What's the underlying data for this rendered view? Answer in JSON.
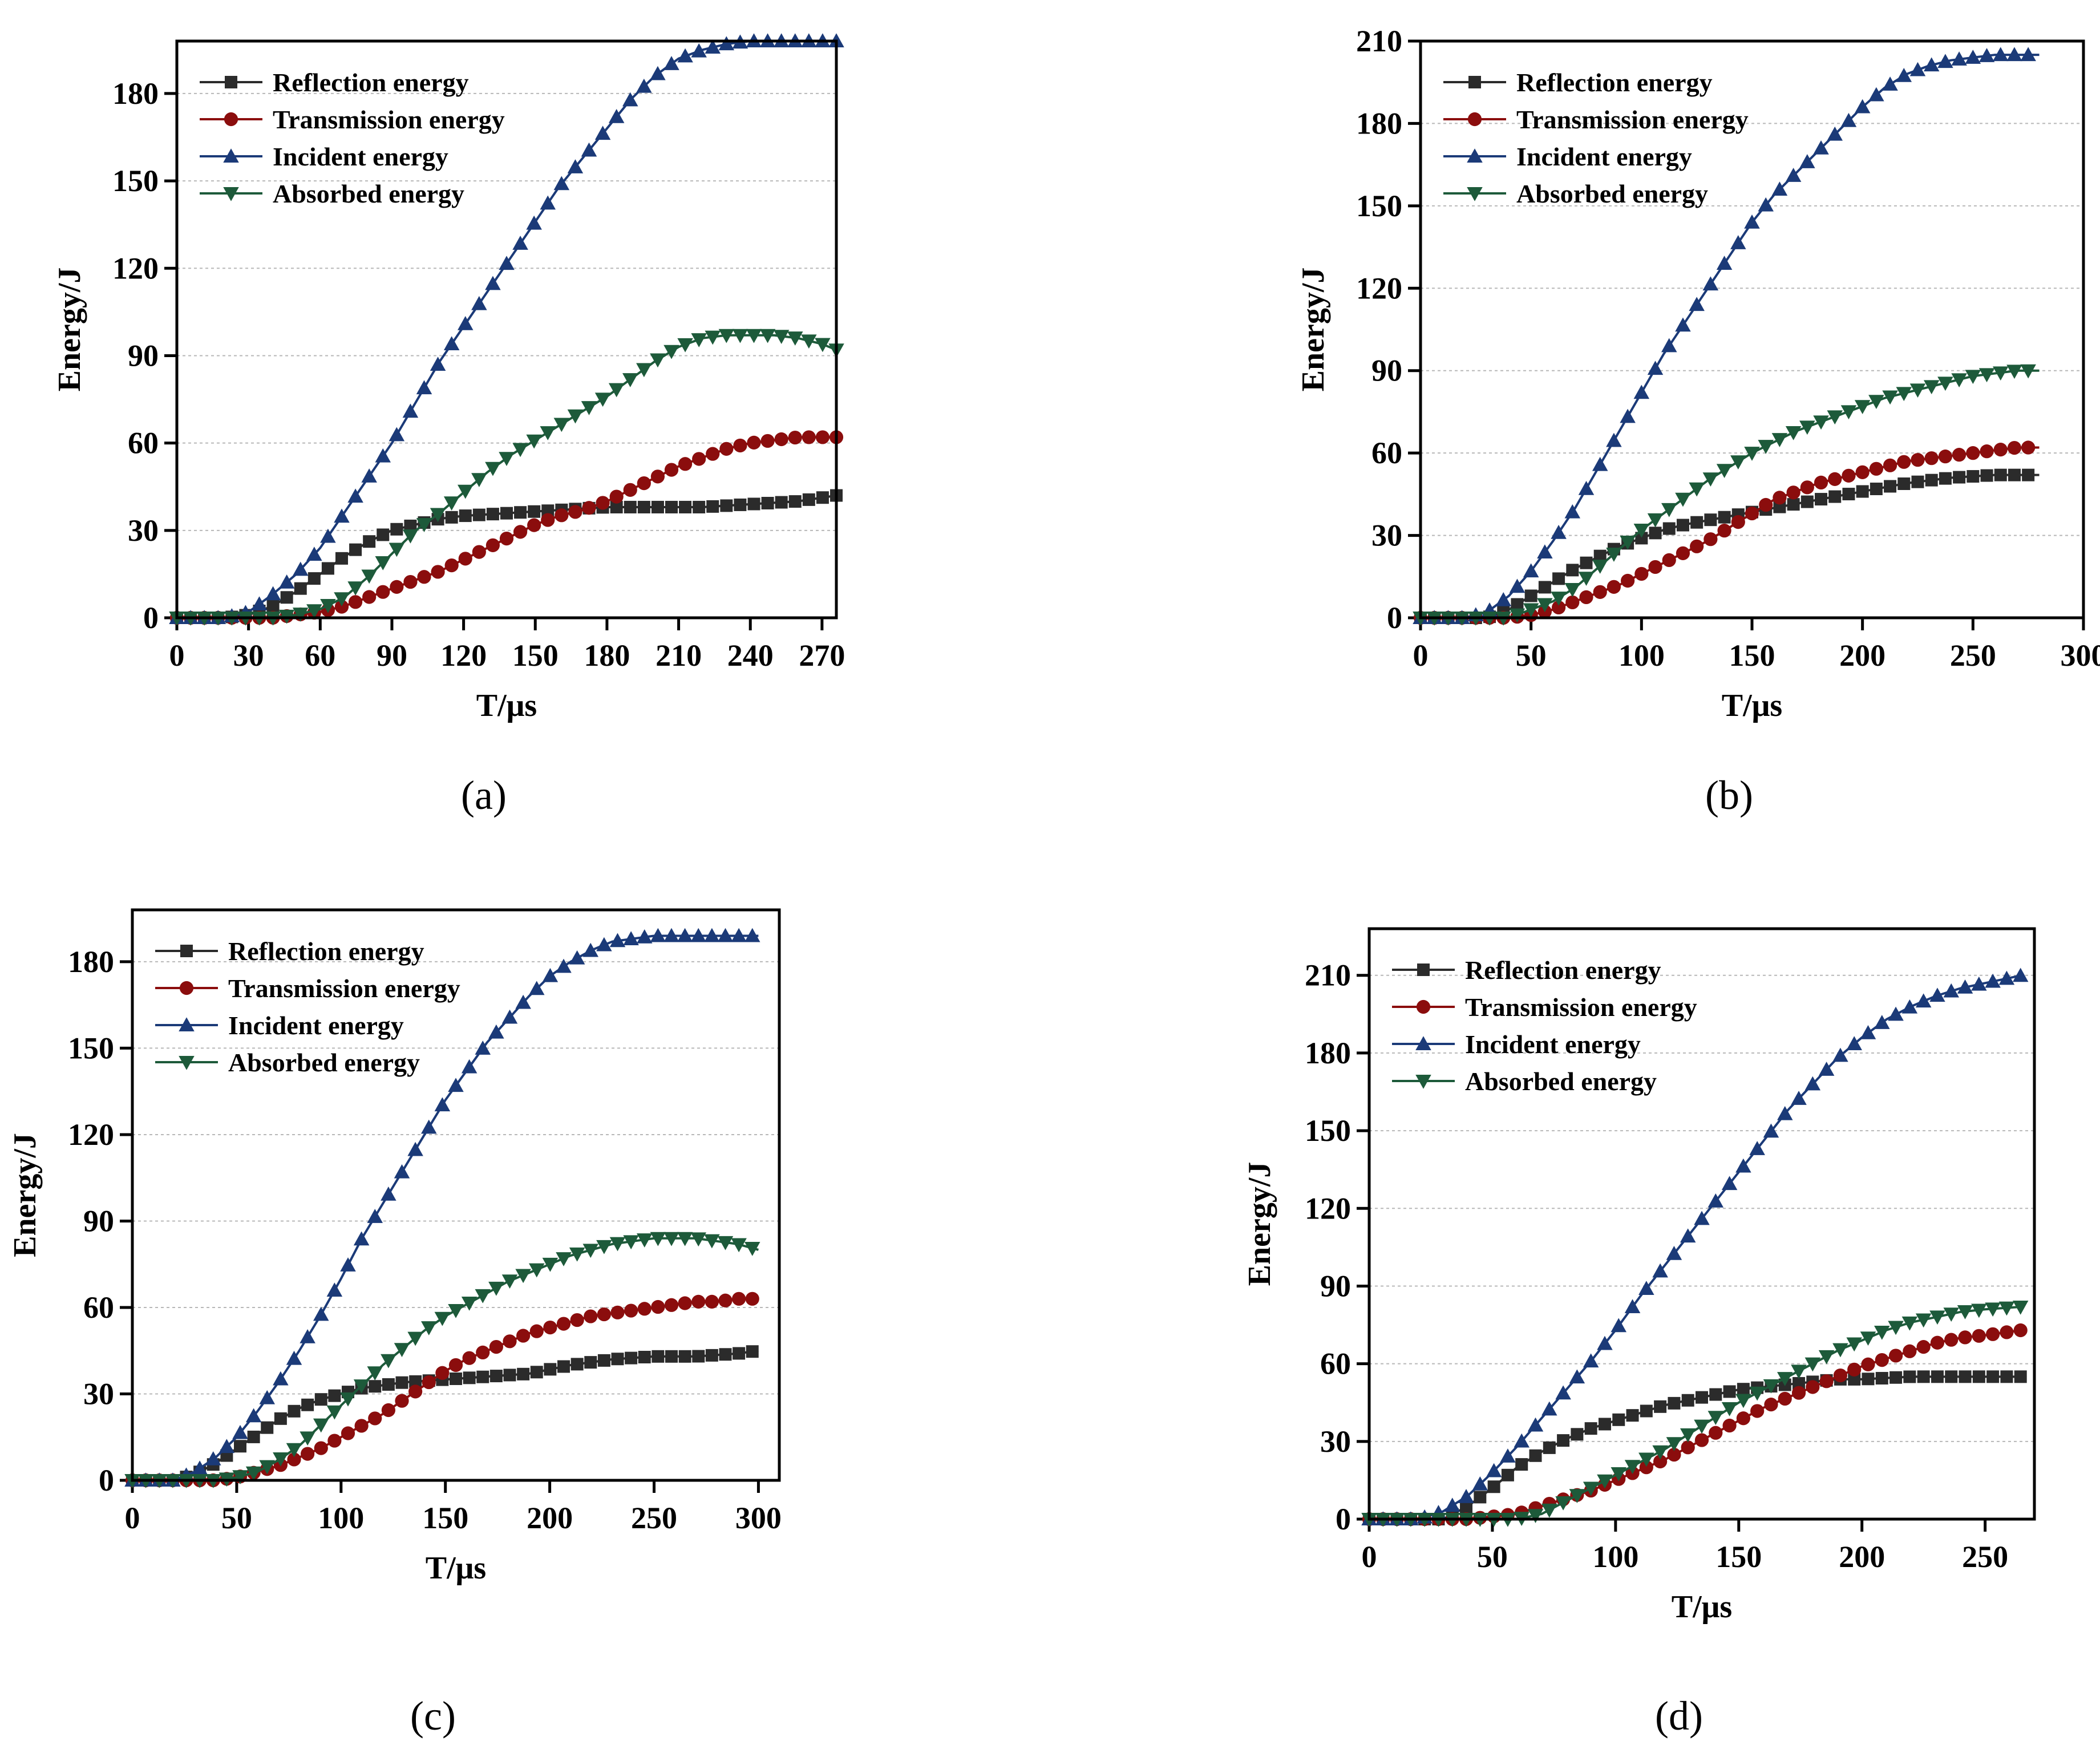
{
  "figure": {
    "panel_labels": [
      "(a)",
      "(b)",
      "(c)",
      "(d)"
    ]
  },
  "colors": {
    "reflection": "#2b2b2b",
    "transmission": "#8b0d0d",
    "incident": "#1b3a78",
    "absorbed": "#1d5a3a"
  },
  "chart_data": [
    {
      "type": "line",
      "panel": "(a)",
      "xlabel": "T/μs",
      "ylabel": "Energy/J",
      "xlim": [
        0,
        276
      ],
      "ylim": [
        0,
        198
      ],
      "xticks": [
        "0",
        "30",
        "60",
        "90",
        "120",
        "150",
        "180",
        "210",
        "240",
        "270"
      ],
      "yticks": [
        "0",
        "30",
        "60",
        "90",
        "120",
        "150",
        "180"
      ],
      "grid": true,
      "legend_position": "top-left",
      "series": [
        {
          "name": "Reflection energy",
          "marker": "square",
          "x": [
            0,
            20,
            30,
            40,
            50,
            60,
            70,
            80,
            90,
            100,
            110,
            120,
            140,
            160,
            180,
            200,
            220,
            240,
            260,
            276
          ],
          "y": [
            0,
            0,
            1,
            4,
            9,
            15,
            21,
            26,
            30,
            32,
            34,
            35,
            36,
            37,
            38,
            38,
            38,
            39,
            40,
            42
          ]
        },
        {
          "name": "Transmission energy",
          "marker": "circle",
          "x": [
            0,
            40,
            50,
            60,
            70,
            80,
            90,
            100,
            110,
            120,
            130,
            140,
            150,
            160,
            170,
            180,
            190,
            200,
            210,
            220,
            230,
            240,
            250,
            260,
            276
          ],
          "y": [
            0,
            0,
            1,
            2,
            4,
            7,
            10,
            13,
            16,
            20,
            24,
            28,
            32,
            35,
            37,
            40,
            44,
            48,
            52,
            55,
            58,
            60,
            61,
            62,
            62
          ]
        },
        {
          "name": "Incident energy",
          "marker": "triangle-up",
          "x": [
            0,
            20,
            30,
            40,
            50,
            60,
            70,
            80,
            90,
            100,
            110,
            120,
            130,
            140,
            150,
            160,
            170,
            180,
            190,
            200,
            210,
            220,
            230,
            240,
            250,
            260,
            276
          ],
          "y": [
            0,
            0,
            2,
            8,
            15,
            24,
            36,
            48,
            60,
            74,
            88,
            100,
            112,
            124,
            136,
            148,
            158,
            168,
            178,
            186,
            192,
            195,
            197,
            198,
            198,
            198,
            198
          ]
        },
        {
          "name": "Absorbed energy",
          "marker": "triangle-down",
          "x": [
            0,
            40,
            50,
            60,
            70,
            80,
            90,
            100,
            110,
            120,
            130,
            140,
            150,
            160,
            170,
            180,
            190,
            200,
            210,
            220,
            230,
            240,
            250,
            260,
            270,
            276
          ],
          "y": [
            0,
            0,
            1,
            3,
            7,
            14,
            22,
            30,
            36,
            43,
            50,
            56,
            61,
            66,
            71,
            76,
            82,
            88,
            93,
            96,
            97,
            97,
            97,
            96,
            94,
            92
          ]
        }
      ]
    },
    {
      "type": "line",
      "panel": "(b)",
      "xlabel": "T/μs",
      "ylabel": "Energy/J",
      "xlim": [
        0,
        300
      ],
      "ylim": [
        0,
        210
      ],
      "xticks": [
        "0",
        "50",
        "100",
        "150",
        "200",
        "250",
        "300"
      ],
      "yticks": [
        "0",
        "30",
        "60",
        "90",
        "120",
        "150",
        "180",
        "210"
      ],
      "grid": true,
      "legend_position": "top-left",
      "series": [
        {
          "name": "Reflection energy",
          "marker": "square",
          "x": [
            0,
            30,
            40,
            50,
            60,
            70,
            80,
            90,
            100,
            110,
            120,
            140,
            160,
            180,
            200,
            220,
            240,
            260,
            280
          ],
          "y": [
            0,
            0,
            3,
            8,
            13,
            18,
            22,
            26,
            29,
            32,
            34,
            37,
            40,
            43,
            46,
            49,
            51,
            52,
            52
          ]
        },
        {
          "name": "Transmission energy",
          "marker": "circle",
          "x": [
            0,
            40,
            50,
            60,
            70,
            80,
            90,
            100,
            110,
            120,
            130,
            140,
            150,
            160,
            170,
            180,
            190,
            200,
            210,
            220,
            230,
            240,
            250,
            260,
            270,
            280
          ],
          "y": [
            0,
            0,
            1,
            3,
            6,
            9,
            12,
            16,
            20,
            24,
            28,
            33,
            38,
            43,
            46,
            49,
            51,
            53,
            55,
            57,
            58,
            59,
            60,
            61,
            62,
            62
          ]
        },
        {
          "name": "Incident energy",
          "marker": "triangle-up",
          "x": [
            0,
            20,
            30,
            40,
            50,
            60,
            70,
            80,
            90,
            100,
            110,
            120,
            130,
            140,
            150,
            160,
            170,
            180,
            190,
            200,
            210,
            220,
            230,
            240,
            250,
            260,
            270,
            280
          ],
          "y": [
            0,
            0,
            2,
            8,
            17,
            28,
            40,
            54,
            68,
            82,
            96,
            108,
            120,
            132,
            144,
            154,
            162,
            170,
            178,
            186,
            193,
            198,
            201,
            203,
            204,
            205,
            205,
            205
          ]
        },
        {
          "name": "Absorbed energy",
          "marker": "triangle-down",
          "x": [
            0,
            40,
            50,
            60,
            70,
            80,
            90,
            100,
            110,
            120,
            130,
            140,
            150,
            160,
            170,
            180,
            190,
            200,
            210,
            220,
            230,
            240,
            250,
            260,
            270,
            280
          ],
          "y": [
            0,
            0,
            3,
            6,
            11,
            18,
            25,
            32,
            38,
            44,
            50,
            55,
            60,
            64,
            68,
            71,
            74,
            77,
            80,
            82,
            84,
            86,
            88,
            89,
            90,
            90
          ]
        }
      ]
    },
    {
      "type": "line",
      "panel": "(c)",
      "xlabel": "T/μs",
      "ylabel": "Energy/J",
      "xlim": [
        0,
        310
      ],
      "ylim": [
        0,
        198
      ],
      "xticks": [
        "0",
        "50",
        "100",
        "150",
        "200",
        "250",
        "300"
      ],
      "yticks": [
        "0",
        "30",
        "60",
        "90",
        "120",
        "150",
        "180"
      ],
      "grid": true,
      "legend_position": "top-left",
      "series": [
        {
          "name": "Reflection energy",
          "marker": "square",
          "x": [
            0,
            20,
            30,
            40,
            50,
            60,
            70,
            80,
            90,
            100,
            110,
            120,
            130,
            150,
            170,
            190,
            210,
            230,
            250,
            270,
            290,
            300
          ],
          "y": [
            0,
            0,
            2,
            6,
            11,
            16,
            21,
            25,
            28,
            30,
            32,
            33,
            34,
            35,
            36,
            37,
            40,
            42,
            43,
            43,
            44,
            45
          ]
        },
        {
          "name": "Transmission energy",
          "marker": "circle",
          "x": [
            0,
            40,
            50,
            60,
            70,
            80,
            90,
            100,
            110,
            120,
            130,
            140,
            150,
            160,
            170,
            180,
            190,
            200,
            210,
            220,
            230,
            240,
            250,
            260,
            270,
            280,
            290,
            300
          ],
          "y": [
            0,
            0,
            1,
            3,
            5,
            8,
            11,
            15,
            19,
            23,
            28,
            33,
            38,
            42,
            45,
            48,
            51,
            53,
            55,
            57,
            58,
            59,
            60,
            61,
            62,
            62,
            63,
            63
          ]
        },
        {
          "name": "Incident energy",
          "marker": "triangle-up",
          "x": [
            0,
            20,
            30,
            40,
            50,
            60,
            70,
            80,
            90,
            100,
            110,
            120,
            130,
            140,
            150,
            160,
            170,
            180,
            190,
            200,
            210,
            220,
            230,
            240,
            250,
            260,
            270,
            280,
            290,
            300
          ],
          "y": [
            0,
            0,
            3,
            8,
            15,
            24,
            34,
            45,
            57,
            70,
            84,
            96,
            108,
            120,
            132,
            142,
            152,
            160,
            168,
            175,
            180,
            184,
            187,
            188,
            189,
            189,
            189,
            189,
            189,
            189
          ]
        },
        {
          "name": "Absorbed energy",
          "marker": "triangle-down",
          "x": [
            0,
            40,
            50,
            60,
            70,
            80,
            90,
            100,
            110,
            120,
            130,
            140,
            150,
            160,
            170,
            180,
            190,
            200,
            210,
            220,
            230,
            240,
            250,
            260,
            270,
            280,
            290,
            300
          ],
          "y": [
            0,
            0,
            1,
            3,
            7,
            12,
            19,
            26,
            33,
            40,
            46,
            52,
            57,
            61,
            65,
            69,
            72,
            75,
            78,
            80,
            82,
            83,
            84,
            84,
            84,
            83,
            82,
            80
          ]
        }
      ]
    },
    {
      "type": "line",
      "panel": "(d)",
      "xlabel": "T/μs",
      "ylabel": "Energy/J",
      "xlim": [
        0,
        270
      ],
      "ylim": [
        0,
        228
      ],
      "xticks": [
        "0",
        "50",
        "100",
        "150",
        "200",
        "250"
      ],
      "yticks": [
        "0",
        "30",
        "60",
        "90",
        "120",
        "150",
        "180",
        "210"
      ],
      "grid": true,
      "legend_position": "top-left",
      "series": [
        {
          "name": "Reflection energy",
          "marker": "square",
          "x": [
            0,
            30,
            40,
            50,
            60,
            70,
            80,
            90,
            100,
            110,
            120,
            130,
            140,
            150,
            160,
            170,
            180,
            190,
            200,
            220,
            240,
            265
          ],
          "y": [
            0,
            0,
            5,
            12,
            20,
            26,
            31,
            35,
            38,
            41,
            44,
            46,
            48,
            50,
            51,
            52,
            53,
            54,
            54,
            55,
            55,
            55
          ]
        },
        {
          "name": "Transmission energy",
          "marker": "circle",
          "x": [
            0,
            40,
            50,
            60,
            70,
            80,
            90,
            100,
            110,
            120,
            130,
            140,
            150,
            160,
            170,
            180,
            190,
            200,
            210,
            220,
            230,
            240,
            250,
            265
          ],
          "y": [
            0,
            0,
            1,
            2,
            5,
            8,
            11,
            15,
            19,
            23,
            28,
            33,
            38,
            43,
            47,
            51,
            55,
            59,
            62,
            65,
            68,
            70,
            71,
            73
          ]
        },
        {
          "name": "Incident energy",
          "marker": "triangle-up",
          "x": [
            0,
            20,
            30,
            40,
            50,
            60,
            70,
            80,
            90,
            100,
            110,
            120,
            130,
            140,
            150,
            160,
            170,
            180,
            190,
            200,
            210,
            220,
            230,
            240,
            250,
            265
          ],
          "y": [
            0,
            0,
            3,
            9,
            18,
            28,
            39,
            50,
            61,
            73,
            86,
            98,
            110,
            122,
            134,
            146,
            158,
            168,
            178,
            186,
            193,
            198,
            202,
            205,
            207,
            210
          ]
        },
        {
          "name": "Absorbed energy",
          "marker": "triangle-down",
          "x": [
            0,
            60,
            70,
            80,
            90,
            100,
            110,
            120,
            130,
            140,
            150,
            160,
            170,
            180,
            190,
            200,
            210,
            220,
            230,
            240,
            250,
            265
          ],
          "y": [
            0,
            0,
            2,
            7,
            12,
            17,
            22,
            27,
            33,
            39,
            45,
            50,
            55,
            60,
            65,
            69,
            73,
            76,
            78,
            80,
            81,
            82
          ]
        }
      ]
    }
  ]
}
